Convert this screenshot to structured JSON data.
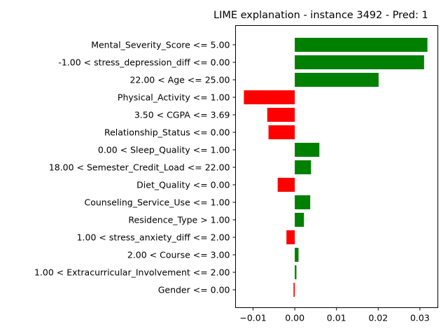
{
  "chart_data": {
    "type": "bar",
    "orientation": "horizontal",
    "title": "LIME explanation - instance 3492 - Pred: 1",
    "xlabel": "",
    "ylabel": "",
    "xlim": [
      -0.0142,
      0.0343
    ],
    "xticks": [
      "−0.01",
      "0.00",
      "0.01",
      "0.02",
      "0.03"
    ],
    "xtick_values": [
      -0.01,
      0.0,
      0.01,
      0.02,
      0.03
    ],
    "grid": false,
    "legend": "none",
    "colors": {
      "positive": "#008000",
      "negative": "#ff0000"
    },
    "categories": [
      "Mental_Severity_Score <= 5.00",
      "-1.00 < stress_depression_diff <= 0.00",
      "22.00 < Age <= 25.00",
      "Physical_Activity <= 1.00",
      "3.50 < CGPA <= 3.69",
      "Relationship_Status <= 0.00",
      "0.00 < Sleep_Quality <= 1.00",
      "18.00 < Semester_Credit_Load <= 22.00",
      "Diet_Quality <= 0.00",
      "Counseling_Service_Use <= 1.00",
      "Residence_Type > 1.00",
      "1.00 < stress_anxiety_diff <= 2.00",
      "2.00 < Course <= 3.00",
      "1.00 < Extracurricular_Involvement <= 2.00",
      "Gender <= 0.00"
    ],
    "values": [
      0.0318,
      0.031,
      0.0201,
      -0.0122,
      -0.0066,
      -0.0063,
      0.0059,
      0.0039,
      -0.0041,
      0.0037,
      0.0022,
      -0.002,
      0.0009,
      0.0004,
      -0.0003
    ]
  }
}
